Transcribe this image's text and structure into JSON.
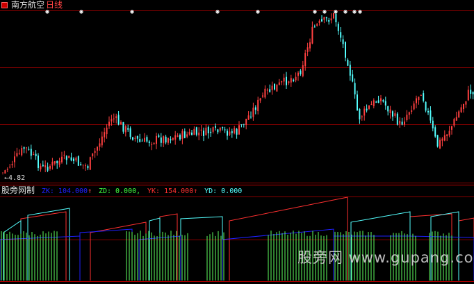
{
  "header": {
    "stock_name": "南方航空",
    "period": "日线"
  },
  "price_panel": {
    "low_label": "4.82",
    "up_color": "#ff4040",
    "down_color": "#54ffff",
    "grid_color": "#8b0000"
  },
  "indicator": {
    "name": "股旁网制",
    "values": [
      {
        "key": "ZK",
        "text": "ZK: 104.000",
        "arrow": "↑",
        "color": "#2020ff"
      },
      {
        "key": "ZD",
        "text": "ZD: 0.000,",
        "color": "#40ff40"
      },
      {
        "key": "YK",
        "text": "YK: 154.000",
        "arrow": "↑",
        "color": "#ff3030"
      },
      {
        "key": "YD",
        "text": "YD: 0.000",
        "color": "#54ffff"
      }
    ]
  },
  "watermark": "股旁网 www.gupang.com"
}
